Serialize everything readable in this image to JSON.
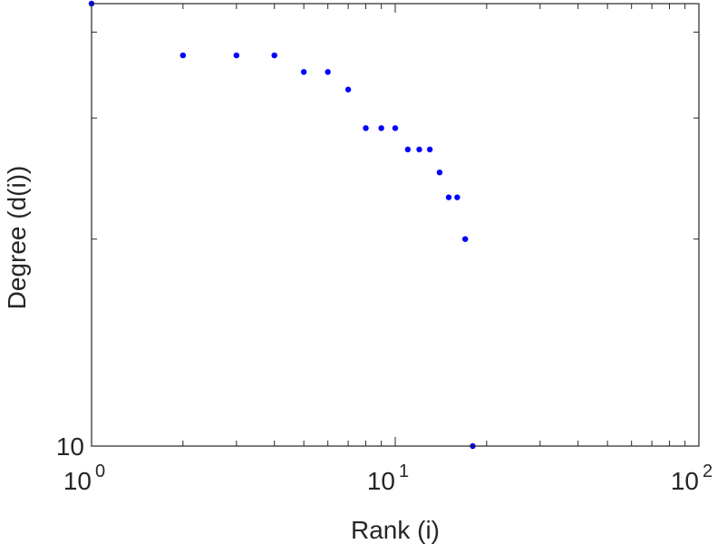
{
  "chart_data": {
    "type": "scatter",
    "xlabel": "Rank (i)",
    "ylabel": "Degree (d(i))",
    "x_scale": "log",
    "y_scale": "log",
    "xlim": [
      1,
      100
    ],
    "ylim": [
      10,
      44
    ],
    "x_tick_labels": [
      {
        "base": "10",
        "exp": "0",
        "value": 1
      },
      {
        "base": "10",
        "exp": "1",
        "value": 10
      },
      {
        "base": "10",
        "exp": "2",
        "value": 100
      }
    ],
    "y_tick_labels": [
      {
        "text": "10",
        "value": 10
      }
    ],
    "grid": false,
    "marker_color": "#0000ff",
    "series": [
      {
        "x": [
          1,
          2,
          3,
          4,
          5,
          6,
          7,
          8,
          9,
          10,
          11,
          12,
          13,
          14,
          15,
          16,
          17,
          18
        ],
        "y": [
          44,
          37,
          37,
          37,
          35,
          35,
          33,
          29,
          29,
          29,
          27,
          27,
          27,
          25,
          23,
          23,
          20,
          10
        ]
      }
    ]
  }
}
